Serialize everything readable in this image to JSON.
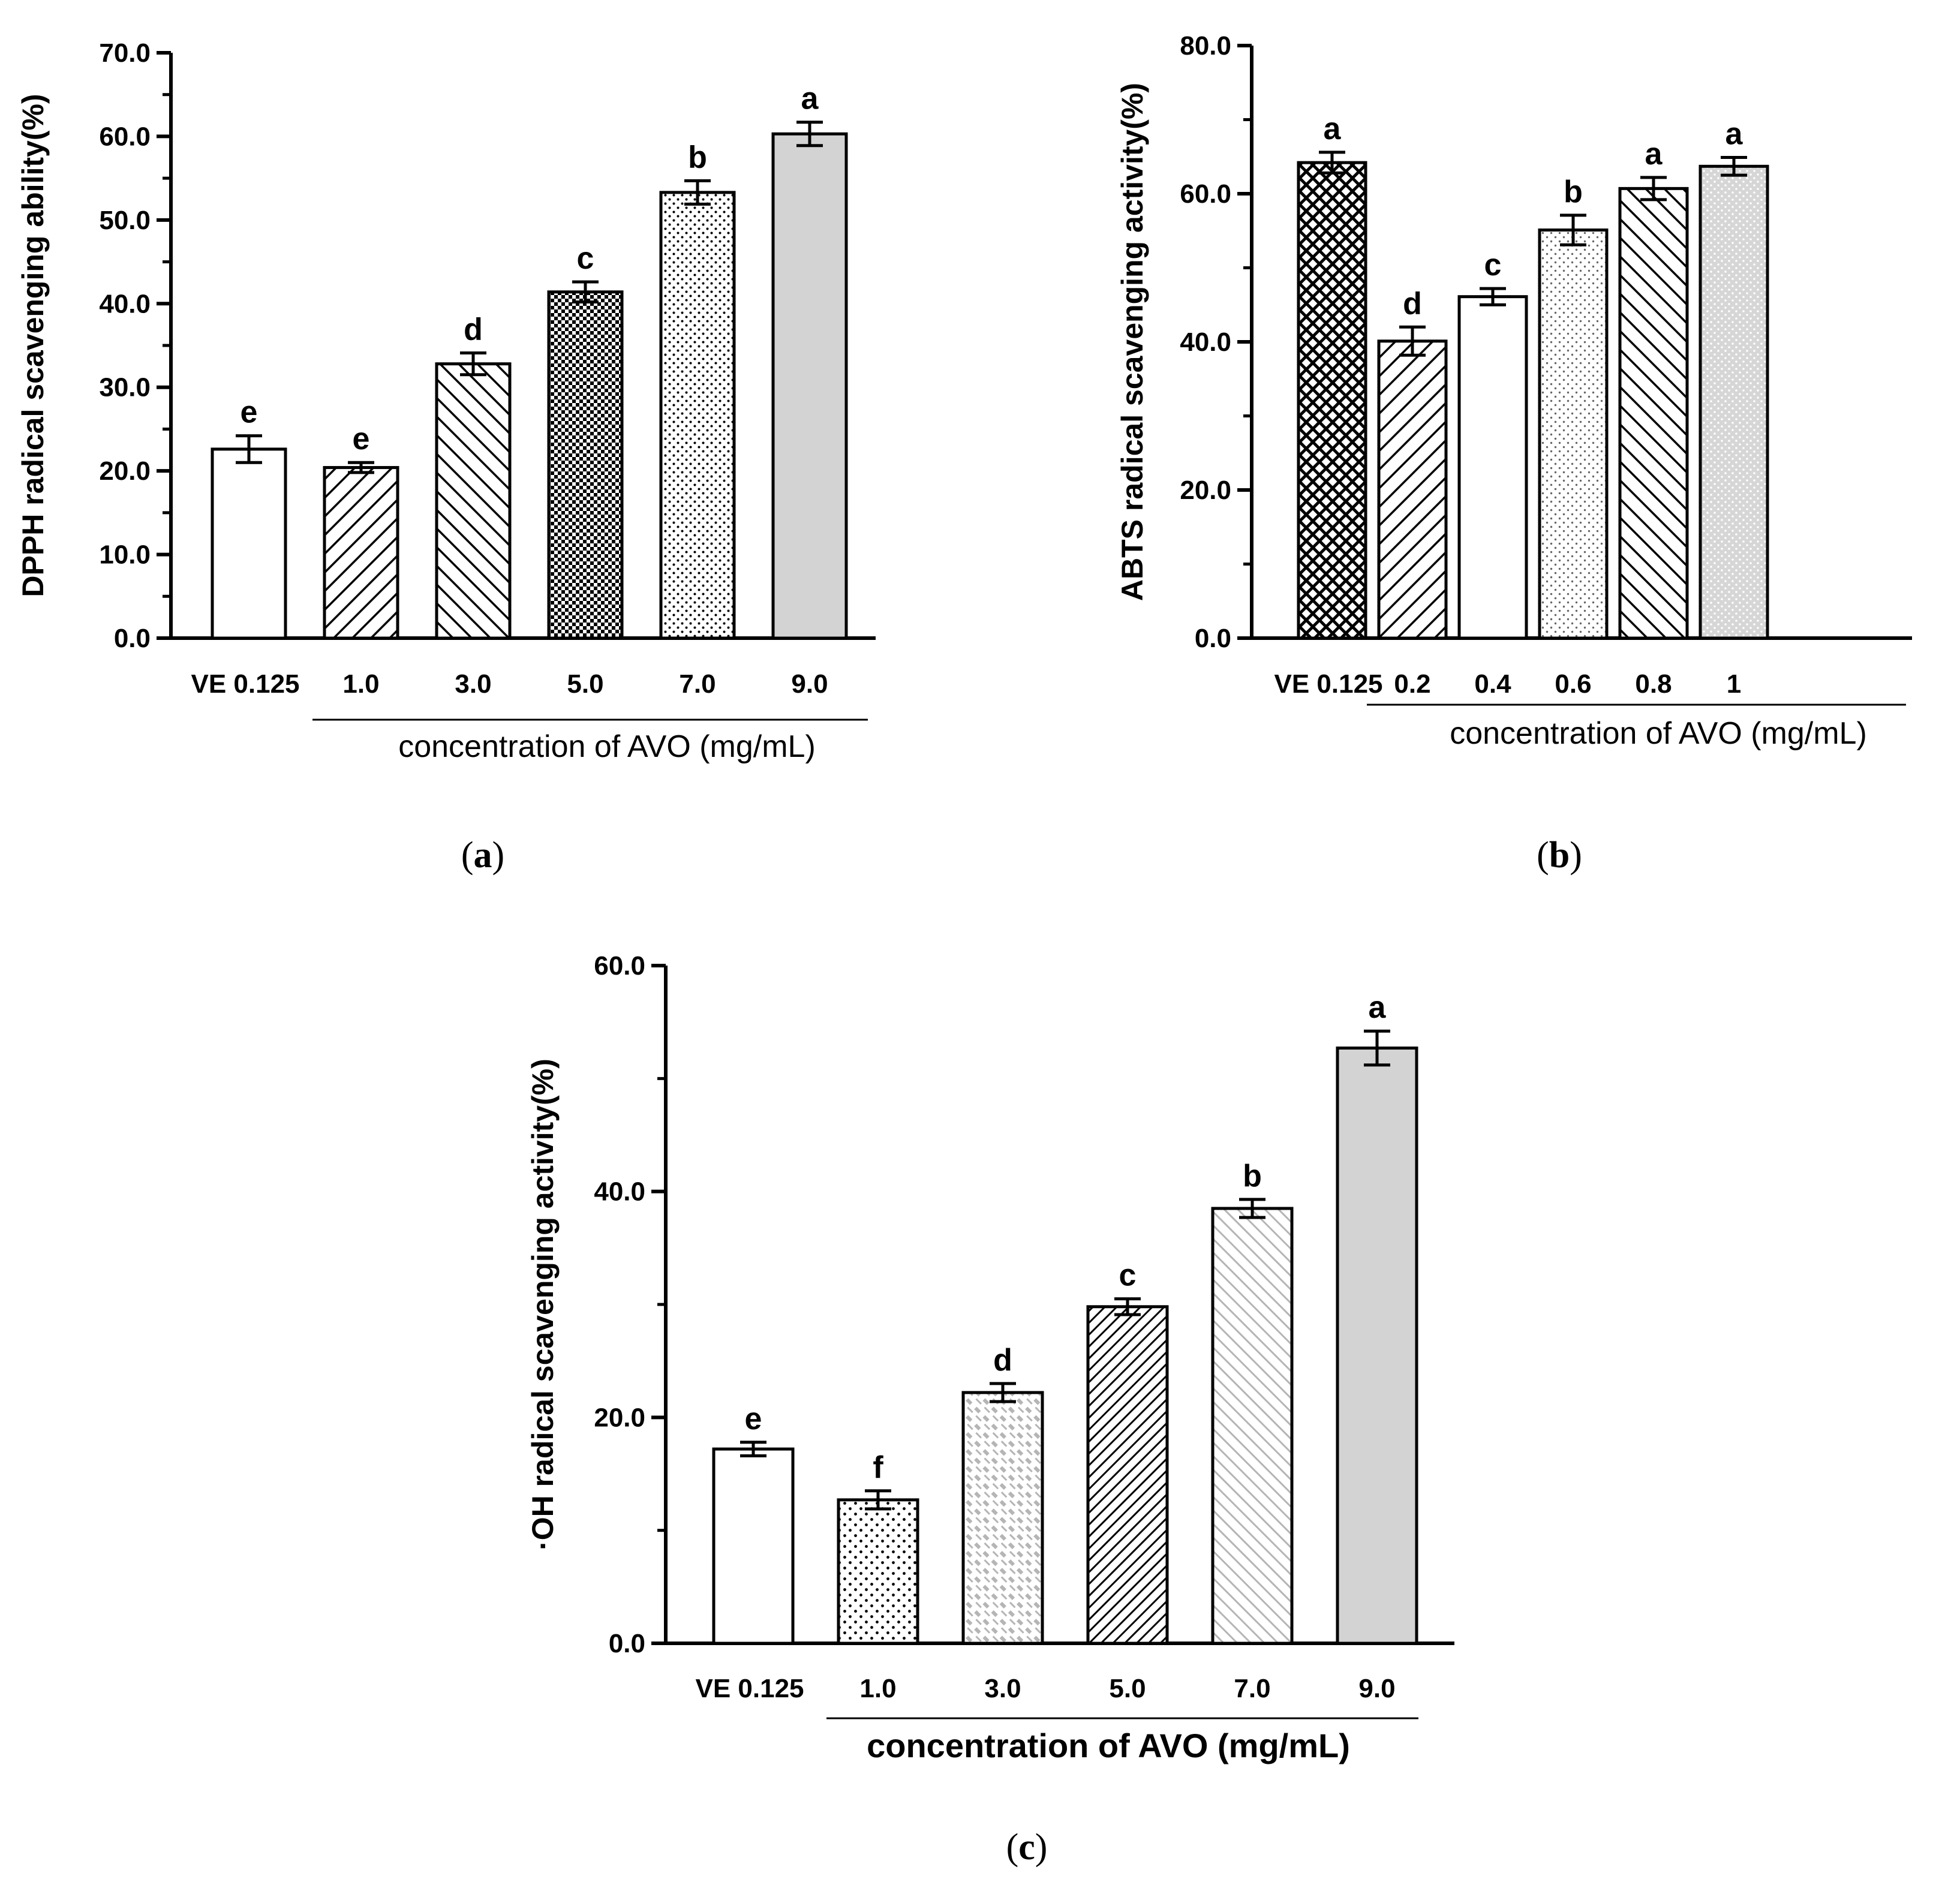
{
  "figure": {
    "panels": [
      {
        "label_open": "(",
        "label_letter": "a",
        "label_close": ")"
      },
      {
        "label_open": "(",
        "label_letter": "b",
        "label_close": ")"
      },
      {
        "label_open": "(",
        "label_letter": "c",
        "label_close": ")"
      }
    ]
  },
  "colors": {
    "axis": "#000000",
    "bar_edge": "#000000",
    "light_gray": "#d3d3d3",
    "hatch_light": "#bbbbbb",
    "background": "#ffffff"
  },
  "chart_data": [
    {
      "id": "a",
      "type": "bar",
      "title": "",
      "ylabel": "DPPH radical scavenging ability(%)",
      "xlabel": "concentration of AVO (mg/mL)",
      "xlabel_bold": false,
      "categories": [
        "VE 0.125",
        "1.0",
        "3.0",
        "5.0",
        "7.0",
        "9.0"
      ],
      "values": [
        22.6,
        20.4,
        32.8,
        41.4,
        53.3,
        60.3
      ],
      "errors": [
        1.6,
        0.6,
        1.3,
        1.2,
        1.4,
        1.4
      ],
      "letters": [
        "e",
        "e",
        "d",
        "c",
        "b",
        "a"
      ],
      "fills": [
        "white",
        "diag-right",
        "diag-left",
        "checker",
        "dots-dense",
        "light-gray"
      ],
      "ylim": [
        0,
        70
      ],
      "yticks": [
        "0.0",
        "10.0",
        "20.0",
        "30.0",
        "40.0",
        "50.0",
        "60.0",
        "70.0"
      ],
      "group_line_from": 1
    },
    {
      "id": "b",
      "type": "bar",
      "title": "",
      "ylabel": "ABTS radical scavenging activity(%)",
      "xlabel": "concentration of AVO (mg/mL)",
      "xlabel_bold": false,
      "categories": [
        "VE 0.125",
        "0.2",
        "0.4",
        "0.6",
        "0.8",
        "1"
      ],
      "values": [
        64.2,
        40.1,
        46.1,
        55.1,
        60.7,
        63.7
      ],
      "errors": [
        1.4,
        1.9,
        1.1,
        2.0,
        1.5,
        1.2
      ],
      "letters": [
        "a",
        "d",
        "c",
        "b",
        "a",
        "a"
      ],
      "fills": [
        "diamond",
        "diag-right",
        "white",
        "dots-light",
        "diag-left",
        "gray-dots"
      ],
      "ylim": [
        0,
        80
      ],
      "yticks": [
        "0.0",
        "20.0",
        "40.0",
        "60.0",
        "80.0"
      ],
      "group_line_from": 1
    },
    {
      "id": "c",
      "type": "bar",
      "title": "",
      "ylabel": "·OH radical scavenging activity(%)",
      "xlabel": "concentration of AVO (mg/mL)",
      "xlabel_bold": true,
      "categories": [
        "VE 0.125",
        "1.0",
        "3.0",
        "5.0",
        "7.0",
        "9.0"
      ],
      "values": [
        17.2,
        12.7,
        22.2,
        29.8,
        38.5,
        52.7
      ],
      "errors": [
        0.6,
        0.8,
        0.8,
        0.7,
        0.8,
        1.5
      ],
      "letters": [
        "e",
        "f",
        "d",
        "c",
        "b",
        "a"
      ],
      "fills": [
        "white",
        "dots",
        "light-dash",
        "diag-dense",
        "light-diag",
        "light-gray"
      ],
      "ylim": [
        0,
        60
      ],
      "yticks": [
        "0.0",
        "20.0",
        "40.0",
        "60.0"
      ],
      "group_line_from": 1
    }
  ]
}
